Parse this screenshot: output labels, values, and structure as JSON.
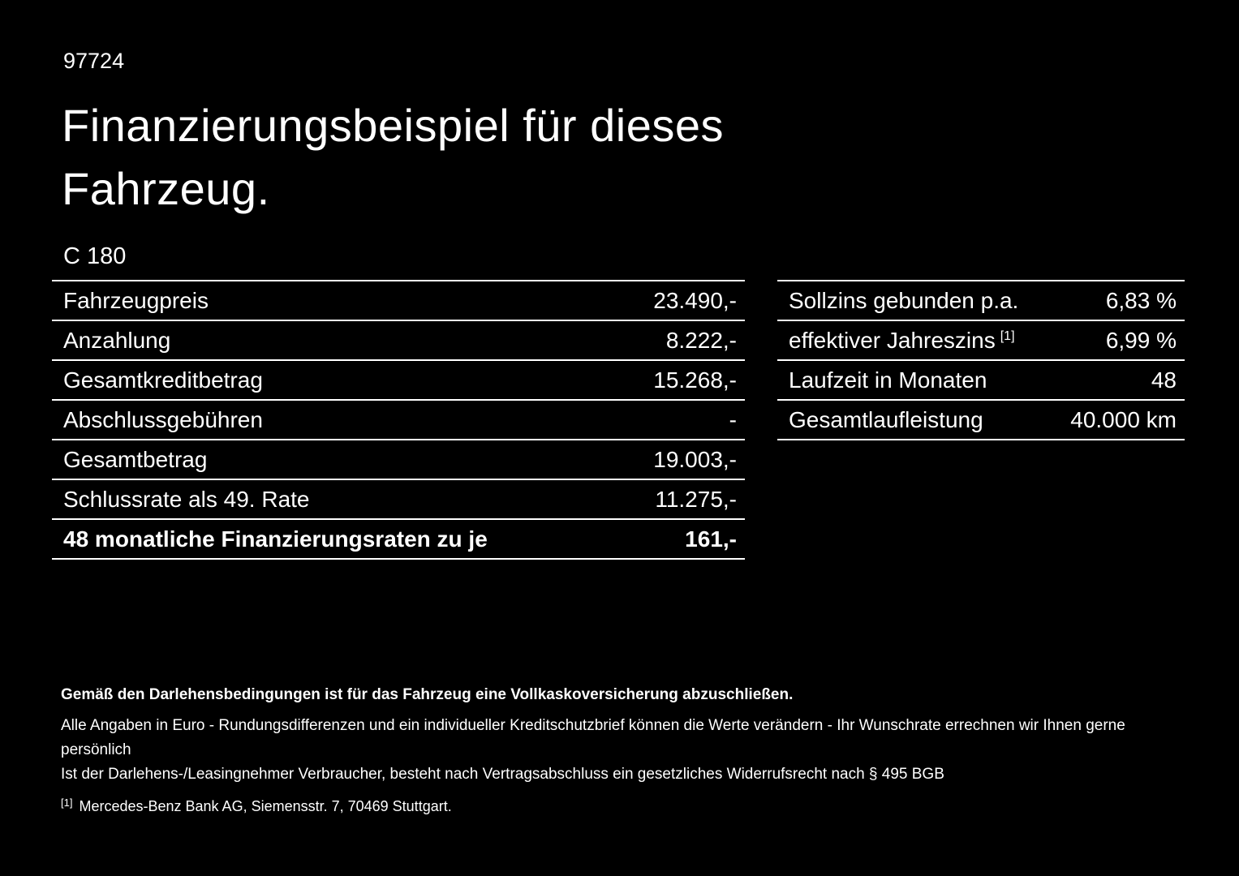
{
  "page": {
    "id": "97724",
    "title_line1": "Finanzierungsbeispiel für dieses",
    "title_line2": "Fahrzeug.",
    "model": "C 180"
  },
  "left_table": {
    "rows": [
      {
        "label": "Fahrzeugpreis",
        "value": "23.490,-"
      },
      {
        "label": "Anzahlung",
        "value": "8.222,-"
      },
      {
        "label": "Gesamtkreditbetrag",
        "value": "15.268,-"
      },
      {
        "label": "Abschlussgebühren",
        "value": "-"
      },
      {
        "label": "Gesamtbetrag",
        "value": "19.003,-"
      },
      {
        "label": "Schlussrate als 49. Rate",
        "value": "11.275,-"
      },
      {
        "label": "48 monatliche Finanzierungsraten zu je",
        "value": "161,-"
      }
    ]
  },
  "right_table": {
    "rows": [
      {
        "label": "Sollzins gebunden p.a.",
        "value": "6,83 %"
      },
      {
        "label": "effektiver Jahreszins",
        "footnote": "[1]",
        "value": "6,99 %"
      },
      {
        "label": "Laufzeit in Monaten",
        "value": "48"
      },
      {
        "label": "Gesamtlaufleistung",
        "value": "40.000 km"
      }
    ]
  },
  "footer": {
    "bold_note": "Gemäß den Darlehensbedingungen ist für das Fahrzeug eine Vollkaskoversicherung abzuschließen.",
    "note1": "Alle Angaben in Euro - Rundungsdifferenzen und ein individueller Kreditschutzbrief können die Werte verändern - Ihr Wunschrate errechnen wir Ihnen gerne persönlich",
    "note2": "Ist der Darlehens-/Leasingnehmer Verbraucher, besteht nach Vertragsabschluss ein gesetzliches Widerrufsrecht nach § 495 BGB",
    "footnote_marker": "[1]",
    "footnote_text": "Mercedes-Benz Bank AG, Siemensstr. 7, 70469 Stuttgart."
  },
  "colors": {
    "background": "#000000",
    "text": "#ffffff",
    "divider": "#ffffff"
  }
}
